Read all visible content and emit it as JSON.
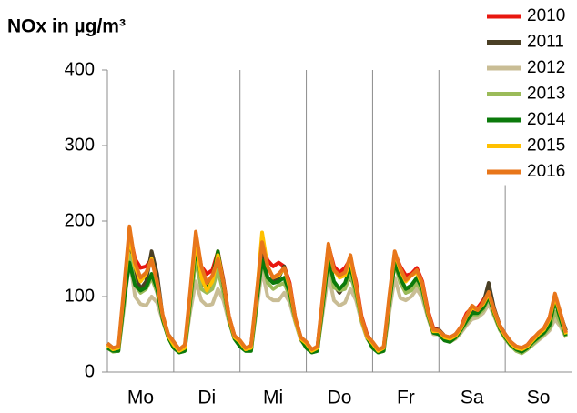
{
  "chart_data": {
    "type": "line",
    "title": "NOx in µg/m³",
    "x": [
      0,
      2,
      4,
      6,
      8,
      10,
      12,
      14,
      16,
      18,
      20,
      22,
      24,
      26,
      28,
      30,
      32,
      34,
      36,
      38,
      40,
      42,
      44,
      46,
      48,
      50,
      52,
      54,
      56,
      58,
      60,
      62,
      64,
      66,
      68,
      70,
      72,
      74,
      76,
      78,
      80,
      82,
      84,
      86,
      88,
      90,
      92,
      94,
      96,
      98,
      100,
      102,
      104,
      106,
      108,
      110,
      112,
      114,
      116,
      118,
      120,
      122,
      124,
      126,
      128,
      130,
      132,
      134,
      136,
      138,
      140,
      142,
      144,
      146,
      148,
      150,
      152,
      154,
      156,
      158,
      160,
      162,
      164,
      166
    ],
    "xlim": [
      0,
      168
    ],
    "xticks": [
      {
        "value": 12,
        "label": "Mo"
      },
      {
        "value": 36,
        "label": "Di"
      },
      {
        "value": 60,
        "label": "Mi"
      },
      {
        "value": 84,
        "label": "Do"
      },
      {
        "value": 108,
        "label": "Fr"
      },
      {
        "value": 132,
        "label": "Sa"
      },
      {
        "value": 156,
        "label": "So"
      }
    ],
    "ylim": [
      0,
      400
    ],
    "yticks": [
      0,
      100,
      200,
      300,
      400
    ],
    "legend": "upper right",
    "series": [
      {
        "name": "2010",
        "color": "#e8170f",
        "values": [
          36,
          30,
          32,
          105,
          185,
          150,
          138,
          140,
          150,
          118,
          72,
          48,
          38,
          30,
          34,
          100,
          180,
          140,
          130,
          135,
          160,
          122,
          74,
          48,
          40,
          32,
          34,
          100,
          168,
          148,
          140,
          145,
          140,
          118,
          72,
          46,
          38,
          30,
          33,
          98,
          168,
          140,
          132,
          138,
          150,
          120,
          74,
          50,
          38,
          30,
          32,
          95,
          158,
          140,
          128,
          130,
          138,
          120,
          82,
          58,
          56,
          48,
          46,
          50,
          60,
          78,
          85,
          85,
          95,
          108,
          84,
          62,
          50,
          40,
          34,
          32,
          36,
          45,
          50,
          58,
          72,
          100,
          78,
          52
        ]
      },
      {
        "name": "2011",
        "color": "#4a3f25",
        "values": [
          38,
          32,
          33,
          100,
          180,
          130,
          110,
          120,
          160,
          130,
          74,
          50,
          40,
          30,
          34,
          96,
          170,
          120,
          110,
          115,
          155,
          120,
          72,
          48,
          40,
          32,
          34,
          95,
          160,
          125,
          120,
          125,
          140,
          110,
          70,
          46,
          38,
          30,
          33,
          94,
          160,
          115,
          105,
          115,
          125,
          110,
          70,
          48,
          38,
          30,
          32,
          92,
          155,
          120,
          105,
          110,
          125,
          110,
          78,
          56,
          56,
          48,
          45,
          50,
          58,
          72,
          82,
          80,
          90,
          118,
          84,
          62,
          50,
          40,
          33,
          30,
          35,
          42,
          48,
          55,
          68,
          98,
          76,
          55
        ]
      },
      {
        "name": "2012",
        "color": "#c9bd95",
        "values": [
          34,
          28,
          28,
          85,
          150,
          100,
          90,
          88,
          100,
          92,
          68,
          46,
          34,
          26,
          30,
          80,
          120,
          95,
          88,
          90,
          110,
          95,
          66,
          44,
          36,
          28,
          30,
          82,
          135,
          100,
          95,
          95,
          105,
          92,
          66,
          42,
          34,
          26,
          30,
          80,
          130,
          95,
          88,
          92,
          110,
          95,
          66,
          44,
          34,
          26,
          28,
          78,
          125,
          98,
          95,
          100,
          110,
          98,
          72,
          50,
          50,
          42,
          40,
          44,
          52,
          62,
          70,
          72,
          78,
          90,
          74,
          56,
          44,
          35,
          28,
          26,
          30,
          36,
          42,
          48,
          55,
          70,
          60,
          46
        ]
      },
      {
        "name": "2013",
        "color": "#9bbb59",
        "values": [
          32,
          27,
          28,
          90,
          155,
          115,
          105,
          110,
          125,
          105,
          70,
          46,
          32,
          26,
          28,
          88,
          150,
          110,
          105,
          110,
          135,
          105,
          68,
          44,
          34,
          28,
          28,
          88,
          148,
          118,
          110,
          115,
          118,
          100,
          68,
          44,
          32,
          26,
          28,
          86,
          148,
          112,
          108,
          110,
          130,
          102,
          68,
          46,
          32,
          26,
          28,
          85,
          145,
          118,
          105,
          108,
          118,
          105,
          74,
          52,
          50,
          42,
          40,
          45,
          54,
          65,
          75,
          76,
          82,
          98,
          76,
          56,
          44,
          35,
          28,
          25,
          30,
          37,
          44,
          50,
          58,
          80,
          64,
          46
        ]
      },
      {
        "name": "2014",
        "color": "#0b7a0b",
        "values": [
          32,
          28,
          28,
          95,
          145,
          115,
          108,
          112,
          130,
          110,
          70,
          46,
          32,
          26,
          28,
          95,
          165,
          125,
          115,
          125,
          160,
          115,
          70,
          44,
          34,
          28,
          28,
          92,
          148,
          125,
          118,
          120,
          125,
          105,
          70,
          44,
          32,
          26,
          28,
          90,
          150,
          120,
          110,
          118,
          140,
          108,
          70,
          46,
          32,
          26,
          28,
          90,
          145,
          125,
          110,
          115,
          125,
          110,
          76,
          52,
          50,
          42,
          40,
          46,
          56,
          68,
          78,
          78,
          85,
          100,
          78,
          58,
          46,
          36,
          30,
          27,
          32,
          40,
          46,
          52,
          62,
          95,
          70,
          48
        ]
      },
      {
        "name": "2015",
        "color": "#ffc000",
        "values": [
          36,
          30,
          32,
          108,
          180,
          140,
          120,
          130,
          150,
          118,
          74,
          48,
          36,
          28,
          32,
          102,
          175,
          125,
          108,
          120,
          155,
          118,
          72,
          46,
          40,
          30,
          32,
          100,
          185,
          140,
          125,
          128,
          138,
          112,
          70,
          44,
          38,
          28,
          32,
          98,
          165,
          135,
          125,
          128,
          148,
          112,
          70,
          46,
          38,
          28,
          32,
          96,
          158,
          135,
          120,
          128,
          132,
          115,
          78,
          54,
          54,
          46,
          44,
          48,
          58,
          74,
          85,
          82,
          90,
          104,
          80,
          60,
          48,
          38,
          32,
          30,
          34,
          42,
          50,
          56,
          70,
          100,
          76,
          50
        ]
      },
      {
        "name": "2016",
        "color": "#e8761a",
        "values": [
          38,
          32,
          34,
          112,
          193,
          145,
          125,
          132,
          148,
          120,
          76,
          50,
          40,
          30,
          36,
          108,
          186,
          140,
          118,
          128,
          150,
          118,
          74,
          48,
          42,
          32,
          35,
          104,
          172,
          140,
          125,
          130,
          138,
          115,
          72,
          46,
          40,
          30,
          34,
          102,
          170,
          135,
          128,
          132,
          155,
          116,
          72,
          48,
          40,
          30,
          33,
          100,
          160,
          138,
          122,
          128,
          135,
          118,
          80,
          56,
          55,
          48,
          46,
          50,
          60,
          75,
          88,
          82,
          92,
          106,
          82,
          62,
          50,
          40,
          34,
          32,
          36,
          44,
          52,
          58,
          72,
          104,
          78,
          52
        ]
      }
    ]
  }
}
